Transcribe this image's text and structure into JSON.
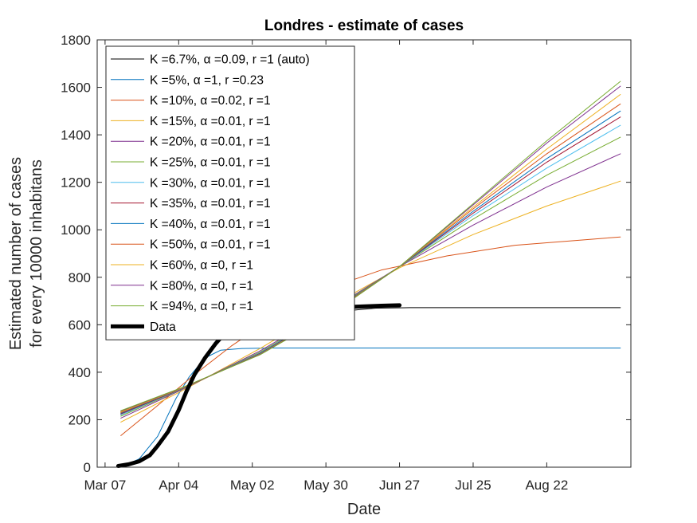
{
  "chart_data": {
    "type": "line",
    "title": "Londres - estimate of cases",
    "xlabel": "Date",
    "ylabel": [
      "Estimated number of cases",
      "for every 10000 inhabitans"
    ],
    "xlim": [
      "2020-03-04",
      "2020-09-23"
    ],
    "ylim": [
      0,
      1800
    ],
    "x_ticks": [
      {
        "date": "2020-03-07",
        "label": "Mar 07"
      },
      {
        "date": "2020-04-04",
        "label": "Apr 04"
      },
      {
        "date": "2020-05-02",
        "label": "May 02"
      },
      {
        "date": "2020-05-30",
        "label": "May 30"
      },
      {
        "date": "2020-06-27",
        "label": "Jun 27"
      },
      {
        "date": "2020-07-25",
        "label": "Jul 25"
      },
      {
        "date": "2020-08-22",
        "label": "Aug 22"
      }
    ],
    "y_ticks": [
      0,
      200,
      400,
      600,
      800,
      1000,
      1200,
      1400,
      1600,
      1800
    ],
    "grid": false,
    "legend_position": "top-left",
    "series": [
      {
        "name": "K =6.7%, α =0.09, r =1 (auto)",
        "color": "#000000",
        "width": 1,
        "points": [
          [
            "2020-06-08",
            660
          ],
          [
            "2020-06-18",
            670
          ],
          [
            "2020-07-01",
            672
          ],
          [
            "2020-09-19",
            672
          ]
        ]
      },
      {
        "name": "K =5%, α =1, r =0.23",
        "color": "#0072BD",
        "width": 1,
        "points": [
          [
            "2020-03-13",
            0
          ],
          [
            "2020-03-20",
            35
          ],
          [
            "2020-03-27",
            130
          ],
          [
            "2020-04-03",
            290
          ],
          [
            "2020-04-08",
            380
          ],
          [
            "2020-04-14",
            460
          ],
          [
            "2020-04-20",
            493
          ],
          [
            "2020-04-28",
            500
          ],
          [
            "2020-05-10",
            502
          ],
          [
            "2020-09-19",
            502
          ]
        ]
      },
      {
        "name": "K =10%, α =0.02, r =1",
        "color": "#D95319",
        "width": 1,
        "points": [
          [
            "2020-03-13",
            133
          ],
          [
            "2020-03-27",
            260
          ],
          [
            "2020-04-10",
            390
          ],
          [
            "2020-04-24",
            510
          ],
          [
            "2020-05-10",
            630
          ],
          [
            "2020-05-30",
            750
          ],
          [
            "2020-06-20",
            830
          ],
          [
            "2020-07-15",
            890
          ],
          [
            "2020-08-10",
            935
          ],
          [
            "2020-09-19",
            970
          ]
        ]
      },
      {
        "name": "K =15%, α =0.01, r =1",
        "color": "#EDB120",
        "width": 1,
        "points": [
          [
            "2020-03-13",
            190
          ],
          [
            "2020-04-05",
            320
          ],
          [
            "2020-05-05",
            500
          ],
          [
            "2020-06-01",
            680
          ],
          [
            "2020-06-27",
            840
          ],
          [
            "2020-07-25",
            980
          ],
          [
            "2020-08-22",
            1100
          ],
          [
            "2020-09-19",
            1205
          ]
        ]
      },
      {
        "name": "K =20%, α =0.01, r =1",
        "color": "#7E2F8E",
        "width": 1,
        "points": [
          [
            "2020-03-13",
            207
          ],
          [
            "2020-04-05",
            325
          ],
          [
            "2020-05-05",
            490
          ],
          [
            "2020-06-01",
            665
          ],
          [
            "2020-06-27",
            845
          ],
          [
            "2020-07-25",
            1020
          ],
          [
            "2020-08-22",
            1180
          ],
          [
            "2020-09-19",
            1320
          ]
        ]
      },
      {
        "name": "K =25%, α =0.01, r =1",
        "color": "#77AC30",
        "width": 1,
        "points": [
          [
            "2020-03-13",
            215
          ],
          [
            "2020-04-05",
            327
          ],
          [
            "2020-05-05",
            485
          ],
          [
            "2020-06-01",
            660
          ],
          [
            "2020-06-27",
            845
          ],
          [
            "2020-07-25",
            1045
          ],
          [
            "2020-08-22",
            1230
          ],
          [
            "2020-09-19",
            1390
          ]
        ]
      },
      {
        "name": "K =30%, α =0.01, r =1",
        "color": "#4DBEEE",
        "width": 1,
        "points": [
          [
            "2020-03-13",
            220
          ],
          [
            "2020-04-05",
            328
          ],
          [
            "2020-05-05",
            482
          ],
          [
            "2020-06-01",
            656
          ],
          [
            "2020-06-27",
            845
          ],
          [
            "2020-07-25",
            1060
          ],
          [
            "2020-08-22",
            1260
          ],
          [
            "2020-09-19",
            1440
          ]
        ]
      },
      {
        "name": "K =35%, α =0.01, r =1",
        "color": "#A2142F",
        "width": 1,
        "points": [
          [
            "2020-03-13",
            224
          ],
          [
            "2020-04-05",
            329
          ],
          [
            "2020-05-05",
            480
          ],
          [
            "2020-06-01",
            654
          ],
          [
            "2020-06-27",
            845
          ],
          [
            "2020-07-25",
            1070
          ],
          [
            "2020-08-22",
            1285
          ],
          [
            "2020-09-19",
            1475
          ]
        ]
      },
      {
        "name": "K =40%, α =0.01, r =1",
        "color": "#0072BD",
        "width": 1,
        "points": [
          [
            "2020-03-13",
            227
          ],
          [
            "2020-04-05",
            330
          ],
          [
            "2020-05-05",
            479
          ],
          [
            "2020-06-01",
            652
          ],
          [
            "2020-06-27",
            845
          ],
          [
            "2020-07-25",
            1078
          ],
          [
            "2020-08-22",
            1300
          ],
          [
            "2020-09-19",
            1500
          ]
        ]
      },
      {
        "name": "K =50%, α =0.01, r =1",
        "color": "#D95319",
        "width": 1,
        "points": [
          [
            "2020-03-13",
            230
          ],
          [
            "2020-04-05",
            331
          ],
          [
            "2020-05-05",
            477
          ],
          [
            "2020-06-01",
            650
          ],
          [
            "2020-06-27",
            845
          ],
          [
            "2020-07-25",
            1088
          ],
          [
            "2020-08-22",
            1320
          ],
          [
            "2020-09-19",
            1530
          ]
        ]
      },
      {
        "name": "K =60%, α =0, r =1",
        "color": "#EDB120",
        "width": 1,
        "points": [
          [
            "2020-03-13",
            233
          ],
          [
            "2020-04-05",
            332
          ],
          [
            "2020-05-05",
            476
          ],
          [
            "2020-06-01",
            648
          ],
          [
            "2020-06-27",
            845
          ],
          [
            "2020-07-25",
            1095
          ],
          [
            "2020-08-22",
            1340
          ],
          [
            "2020-09-19",
            1570
          ]
        ]
      },
      {
        "name": "K =80%, α =0, r =1",
        "color": "#7E2F8E",
        "width": 1,
        "points": [
          [
            "2020-03-13",
            236
          ],
          [
            "2020-04-05",
            333
          ],
          [
            "2020-05-05",
            475
          ],
          [
            "2020-06-01",
            646
          ],
          [
            "2020-06-27",
            845
          ],
          [
            "2020-07-25",
            1105
          ],
          [
            "2020-08-22",
            1365
          ],
          [
            "2020-09-19",
            1605
          ]
        ]
      },
      {
        "name": "K =94%, α =0, r =1",
        "color": "#77AC30",
        "width": 1,
        "points": [
          [
            "2020-03-13",
            238
          ],
          [
            "2020-04-05",
            334
          ],
          [
            "2020-05-05",
            474
          ],
          [
            "2020-06-01",
            645
          ],
          [
            "2020-06-27",
            845
          ],
          [
            "2020-07-25",
            1110
          ],
          [
            "2020-08-22",
            1375
          ],
          [
            "2020-09-19",
            1625
          ]
        ]
      },
      {
        "name": "Data",
        "color": "#000000",
        "width": 5,
        "points": [
          [
            "2020-03-12",
            5
          ],
          [
            "2020-03-16",
            12
          ],
          [
            "2020-03-20",
            25
          ],
          [
            "2020-03-24",
            50
          ],
          [
            "2020-03-27",
            90
          ],
          [
            "2020-03-31",
            150
          ],
          [
            "2020-04-04",
            240
          ],
          [
            "2020-04-07",
            320
          ],
          [
            "2020-04-10",
            390
          ],
          [
            "2020-04-14",
            460
          ],
          [
            "2020-04-18",
            520
          ],
          [
            "2020-04-22",
            570
          ],
          [
            "2020-04-27",
            610
          ],
          [
            "2020-05-05",
            635
          ],
          [
            "2020-05-15",
            650
          ],
          [
            "2020-05-27",
            665
          ],
          [
            "2020-06-08",
            675
          ],
          [
            "2020-06-20",
            680
          ],
          [
            "2020-06-27",
            682
          ]
        ]
      }
    ]
  }
}
